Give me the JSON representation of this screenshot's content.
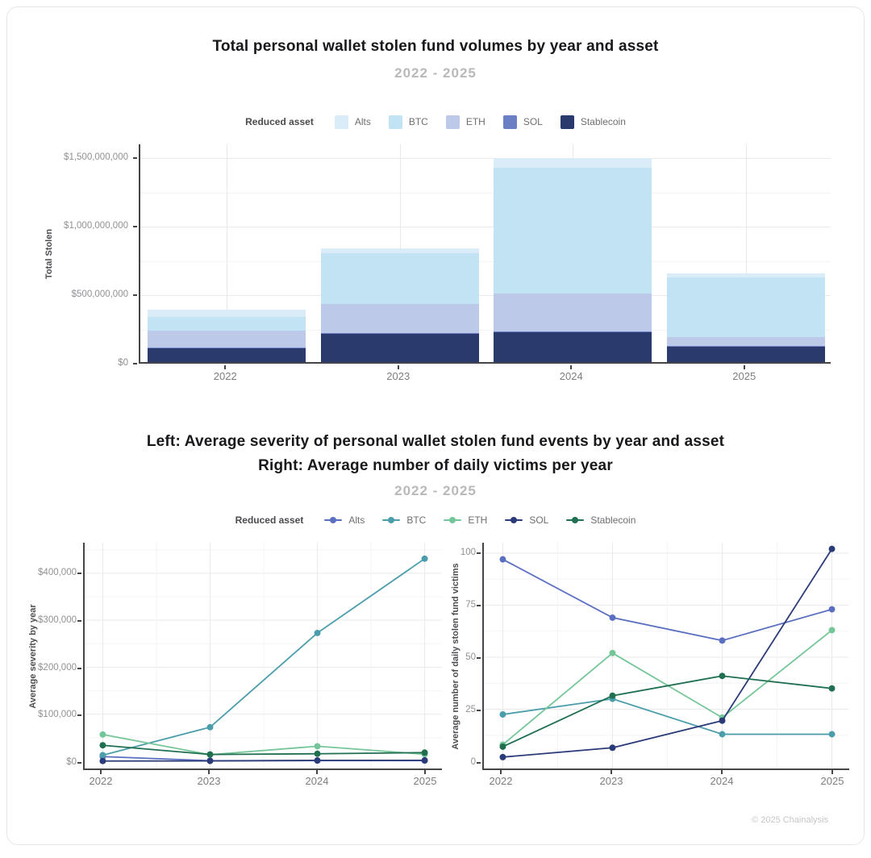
{
  "section1": {
    "title": "Total personal wallet stolen fund volumes by year and asset",
    "subtitle": "2022 - 2025"
  },
  "section2": {
    "title_line1": "Left: Average severity of personal wallet stolen fund events by year and asset",
    "title_line2": "Right: Average number of daily victims per year",
    "subtitle": "2022 - 2025"
  },
  "legend_top": {
    "label": "Reduced asset",
    "items": [
      {
        "name": "Alts",
        "color": "#d9ecf8"
      },
      {
        "name": "BTC",
        "color": "#c2e3f4"
      },
      {
        "name": "ETH",
        "color": "#bcc9e9"
      },
      {
        "name": "SOL",
        "color": "#6b80c4"
      },
      {
        "name": "Stablecoin",
        "color": "#2a3a6c"
      }
    ]
  },
  "legend_bottom": {
    "label": "Reduced asset",
    "items": [
      {
        "name": "Alts",
        "color": "#5b6fc2"
      },
      {
        "name": "BTC",
        "color": "#4b9dab"
      },
      {
        "name": "ETH",
        "color": "#74c698"
      },
      {
        "name": "SOL",
        "color": "#2b3a78"
      },
      {
        "name": "Stablecoin",
        "color": "#1f6f50"
      }
    ]
  },
  "footer": {
    "copyright": "© 2025 Chainalysis"
  },
  "chart_data": [
    {
      "type": "bar",
      "stacked": true,
      "title": "Total personal wallet stolen fund volumes by year and asset",
      "subtitle": "2022 - 2025",
      "xlabel": "",
      "ylabel": "Total Stolen",
      "categories": [
        "2022",
        "2023",
        "2024",
        "2025"
      ],
      "series": [
        {
          "name": "Stablecoin",
          "color": "#2a3a6c",
          "values": [
            100000000,
            210000000,
            220000000,
            110000000
          ]
        },
        {
          "name": "SOL",
          "color": "#6b80c4",
          "values": [
            8000000,
            4000000,
            6000000,
            5000000
          ]
        },
        {
          "name": "ETH",
          "color": "#bcc9e9",
          "values": [
            122000000,
            212000000,
            272000000,
            68000000
          ]
        },
        {
          "name": "BTC",
          "color": "#c2e3f4",
          "values": [
            100000000,
            370000000,
            920000000,
            432000000
          ]
        },
        {
          "name": "Alts",
          "color": "#d9ecf8",
          "values": [
            55000000,
            35000000,
            72000000,
            35000000
          ]
        }
      ],
      "stack_order": "bottom_to_top",
      "totals": [
        385000000,
        831000000,
        1490000000,
        650000000
      ],
      "yticks": [
        {
          "v": 0,
          "label": "$0"
        },
        {
          "v": 500000000,
          "label": "$500,000,000"
        },
        {
          "v": 1000000000,
          "label": "$1,000,000,000"
        },
        {
          "v": 1500000000,
          "label": "$1,500,000,000"
        }
      ],
      "yminor": [
        250000000,
        750000000,
        1250000000
      ],
      "ylim": [
        0,
        1600000000
      ],
      "grid": true,
      "legend_position": "top"
    },
    {
      "type": "line",
      "title": "Left: Average severity of personal wallet stolen fund events by year and asset",
      "subtitle": "2022 - 2025",
      "xlabel": "",
      "ylabel": "Average severity by year",
      "x": [
        "2022",
        "2023",
        "2024",
        "2025"
      ],
      "series": [
        {
          "name": "Alts",
          "color": "#5b6fc2",
          "values": [
            10000,
            1200,
            1500,
            1500
          ]
        },
        {
          "name": "BTC",
          "color": "#4b9dab",
          "values": [
            13000,
            72500,
            273000,
            431000
          ]
        },
        {
          "name": "ETH",
          "color": "#74c698",
          "values": [
            57000,
            14000,
            32000,
            15000
          ]
        },
        {
          "name": "SOL",
          "color": "#2b3a78",
          "values": [
            600,
            800,
            1800,
            2000
          ]
        },
        {
          "name": "Stablecoin",
          "color": "#1f6f50",
          "values": [
            34000,
            14500,
            16000,
            18500
          ]
        }
      ],
      "yticks": [
        {
          "v": 0,
          "label": "$0"
        },
        {
          "v": 100000,
          "label": "$100,000"
        },
        {
          "v": 200000,
          "label": "$200,000"
        },
        {
          "v": 300000,
          "label": "$300,000"
        },
        {
          "v": 400000,
          "label": "$400,000"
        }
      ],
      "yminor": [
        50000,
        150000,
        250000,
        350000,
        450000
      ],
      "ylim": [
        0,
        465000
      ],
      "grid": true,
      "legend_position": "top"
    },
    {
      "type": "line",
      "title": "Right: Average number of daily victims per year",
      "subtitle": "2022 - 2025",
      "xlabel": "",
      "ylabel": "Average number of daily stolen fund victims",
      "x": [
        "2022",
        "2023",
        "2024",
        "2025"
      ],
      "series": [
        {
          "name": "Alts",
          "color": "#5b6fc2",
          "values": [
            97,
            69,
            58,
            73
          ]
        },
        {
          "name": "BTC",
          "color": "#4b9dab",
          "values": [
            22.5,
            30,
            13,
            13
          ]
        },
        {
          "name": "ETH",
          "color": "#74c698",
          "values": [
            8,
            52,
            21,
            63
          ]
        },
        {
          "name": "SOL",
          "color": "#2b3a78",
          "values": [
            2,
            6.5,
            19.5,
            102
          ]
        },
        {
          "name": "Stablecoin",
          "color": "#1f6f50",
          "values": [
            7,
            31.5,
            41,
            35
          ]
        }
      ],
      "yticks": [
        {
          "v": 0,
          "label": "0"
        },
        {
          "v": 25,
          "label": "25"
        },
        {
          "v": 50,
          "label": "50"
        },
        {
          "v": 75,
          "label": "75"
        },
        {
          "v": 100,
          "label": "100"
        }
      ],
      "yminor": [
        12.5,
        37.5,
        62.5,
        87.5
      ],
      "ylim": [
        0,
        105
      ],
      "grid": true,
      "legend_position": "top"
    }
  ]
}
